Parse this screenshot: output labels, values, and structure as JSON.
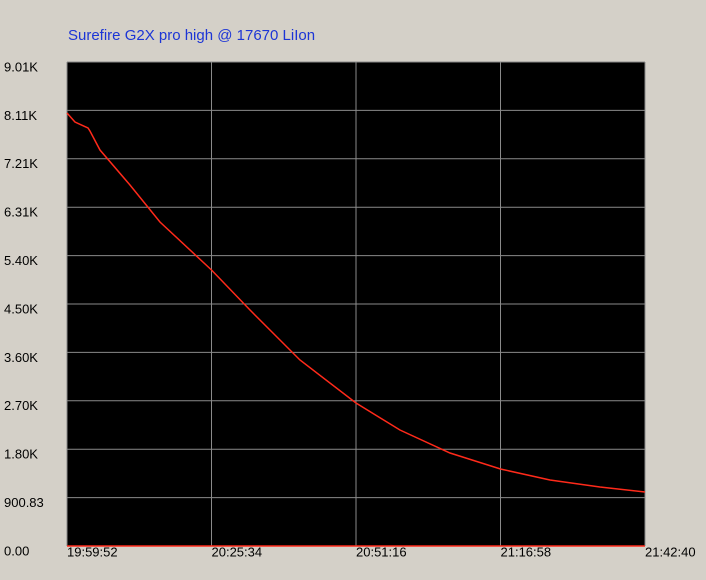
{
  "chart_data": {
    "type": "line",
    "title": "Surefire G2X pro high @ 17670 LiIon",
    "x": [
      "19:59:52",
      "20:01:17",
      "20:03:36",
      "20:03:57",
      "20:05:44",
      "20:11:04",
      "20:16:24",
      "20:25:34",
      "20:32:25",
      "20:41:18",
      "20:51:16",
      "20:59:05",
      "21:07:59",
      "21:16:58",
      "21:25:46",
      "21:34:39",
      "21:42:40"
    ],
    "series": [
      {
        "color": "#ff2a1a",
        "values": [
          8059,
          7891,
          7780,
          7724,
          7370,
          6719,
          6030,
          5137,
          4392,
          3462,
          2661,
          2159,
          1731,
          1433,
          1228,
          1098,
          1005
        ]
      }
    ],
    "xlim": [
      "19:59:52",
      "21:42:40"
    ],
    "xticks": [
      "19:59:52",
      "20:25:34",
      "20:51:16",
      "21:16:58",
      "21:42:40"
    ],
    "ylim": [
      0,
      9008.3
    ],
    "yticks": [
      {
        "value": 0,
        "label": "0.00"
      },
      900.83,
      {
        "value": 1801.66,
        "label": "1.80K"
      },
      {
        "value": 2702.49,
        "label": "2.70K"
      },
      {
        "value": 3603.32,
        "label": "3.60K"
      },
      {
        "value": 4504.15,
        "label": "4.50K"
      },
      {
        "value": 5404.98,
        "label": "5.40K"
      },
      {
        "value": 6305.81,
        "label": "6.31K"
      },
      {
        "value": 7206.64,
        "label": "7.21K"
      },
      {
        "value": 8107.47,
        "label": "8.11K"
      },
      {
        "value": 9008.3,
        "label": "9.01K"
      }
    ],
    "grid": true
  }
}
